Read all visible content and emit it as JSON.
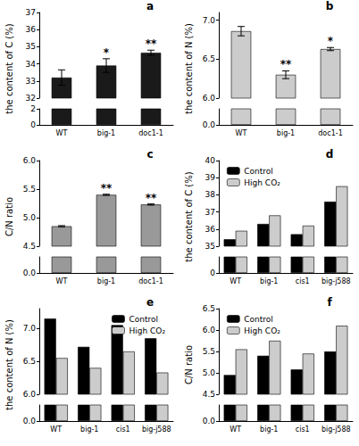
{
  "chart_data": [
    {
      "type": "bar",
      "title": "a",
      "ylabel": "the content of C (%)",
      "categories": [
        "WT",
        "big-1",
        "doc1-1"
      ],
      "values": [
        33.2,
        33.9,
        34.65
      ],
      "errors": [
        0.45,
        0.4,
        0.15
      ],
      "color": "#1a1a1a",
      "ylim": [
        0,
        37
      ],
      "y_break": [
        2,
        32
      ],
      "yticks": [
        0,
        2,
        32,
        33,
        34,
        35,
        36,
        37
      ],
      "annotations": [
        {
          "category": "big-1",
          "text": "*"
        },
        {
          "category": "doc1-1",
          "text": "**"
        }
      ]
    },
    {
      "type": "bar",
      "title": "b",
      "ylabel": "the content of N (%)",
      "categories": [
        "WT",
        "big-1",
        "doc1-1"
      ],
      "values": [
        6.86,
        6.3,
        6.63
      ],
      "errors": [
        0.06,
        0.05,
        0.02
      ],
      "color": "#cccccc",
      "ylim": [
        0,
        7.1
      ],
      "y_break": [
        0.5,
        6.0
      ],
      "yticks": [
        {
          "value": 0,
          "label": "0.0"
        },
        {
          "value": 6,
          "label": "6.0"
        },
        6.5,
        {
          "value": 7,
          "label": "7.0"
        }
      ],
      "annotations": [
        {
          "category": "big-1",
          "text": "**"
        },
        {
          "category": "doc1-1",
          "text": "*"
        }
      ]
    },
    {
      "type": "bar",
      "title": "c",
      "ylabel": "C/N ratio",
      "categories": [
        "WT",
        "big-1",
        "doc1-1"
      ],
      "values": [
        4.85,
        5.4,
        5.23
      ],
      "errors": [
        0.01,
        0.01,
        0.01
      ],
      "color": "#999999",
      "ylim": [
        0,
        6.0
      ],
      "y_break": [
        0.5,
        4.5
      ],
      "yticks": [
        {
          "value": 0,
          "label": "0.0"
        },
        4.5,
        {
          "value": 5,
          "label": "5.0"
        },
        5.5,
        {
          "value": 6,
          "label": "6.0"
        }
      ],
      "annotations": [
        {
          "category": "big-1",
          "text": "**"
        },
        {
          "category": "doc1-1",
          "text": "**"
        }
      ]
    },
    {
      "type": "bar",
      "title": "d",
      "ylabel": "the content of C (%)",
      "categories": [
        "WT",
        "big-1",
        "cis1",
        "big-j588"
      ],
      "series": [
        {
          "name": "Control",
          "color": "#000000",
          "values": [
            35.4,
            36.3,
            35.7,
            37.6
          ]
        },
        {
          "name": "High CO₂",
          "color": "#cccccc",
          "values": [
            35.9,
            36.8,
            36.2,
            38.5
          ]
        }
      ],
      "ylim": [
        0,
        40
      ],
      "y_break": [
        1,
        35
      ],
      "yticks": [
        0,
        35,
        36,
        37,
        38,
        39,
        40
      ],
      "legend": "top-left"
    },
    {
      "type": "bar",
      "title": "e",
      "ylabel": "the content of N (%)",
      "categories": [
        "WT",
        "big-1",
        "cis1",
        "big-j588"
      ],
      "series": [
        {
          "name": "Control",
          "color": "#000000",
          "values": [
            7.15,
            6.72,
            7.05,
            6.85
          ]
        },
        {
          "name": "High CO₂",
          "color": "#cccccc",
          "values": [
            6.55,
            6.4,
            6.65,
            6.33
          ]
        }
      ],
      "ylim": [
        0,
        7.3
      ],
      "y_break": [
        0.5,
        6.0
      ],
      "yticks": [
        {
          "value": 0,
          "label": "0.0"
        },
        {
          "value": 6,
          "label": "6.0"
        },
        6.5,
        {
          "value": 7,
          "label": "7.0"
        }
      ],
      "legend": "top-right"
    },
    {
      "type": "bar",
      "title": "f",
      "ylabel": "C/N ratio",
      "categories": [
        "WT",
        "big-1",
        "cis1",
        "big-j588"
      ],
      "series": [
        {
          "name": "Control",
          "color": "#000000",
          "values": [
            4.95,
            5.4,
            5.08,
            5.5
          ]
        },
        {
          "name": "High CO₂",
          "color": "#cccccc",
          "values": [
            5.55,
            5.75,
            5.45,
            6.1
          ]
        }
      ],
      "ylim": [
        0,
        6.5
      ],
      "y_break": [
        0.5,
        4.5
      ],
      "yticks": [
        {
          "value": 0,
          "label": "0.0"
        },
        4.5,
        {
          "value": 5,
          "label": "5.0"
        },
        5.5,
        {
          "value": 6,
          "label": "6.0"
        },
        6.5
      ],
      "legend": "top-left"
    }
  ]
}
